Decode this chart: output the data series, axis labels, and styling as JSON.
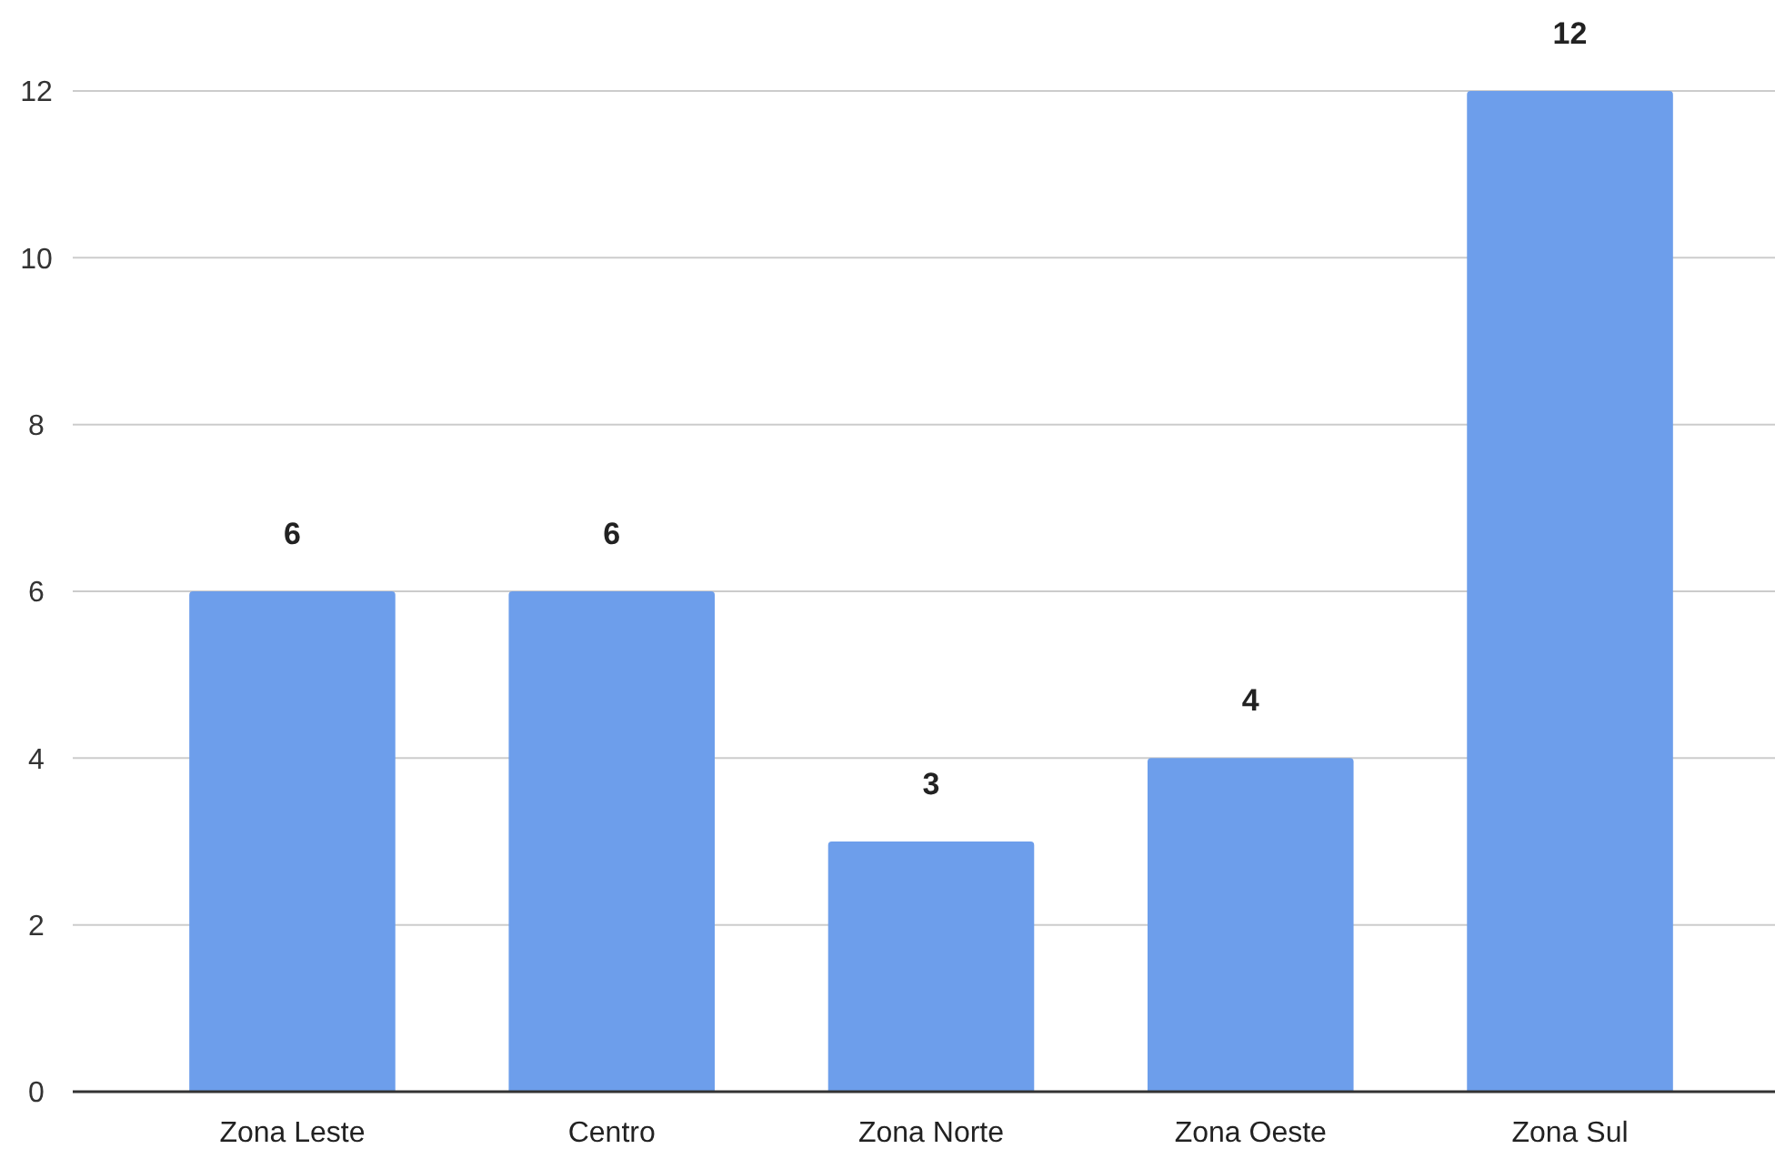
{
  "chart_data": {
    "type": "bar",
    "categories": [
      "Zona Leste",
      "Centro",
      "Zona Norte",
      "Zona Oeste",
      "Zona Sul"
    ],
    "values": [
      6,
      6,
      3,
      4,
      12
    ],
    "color": "#6d9eeb",
    "ylim": [
      0,
      12
    ],
    "yticks": [
      0,
      2,
      4,
      6,
      8,
      10,
      12
    ],
    "grid": "y",
    "data_labels": true
  }
}
